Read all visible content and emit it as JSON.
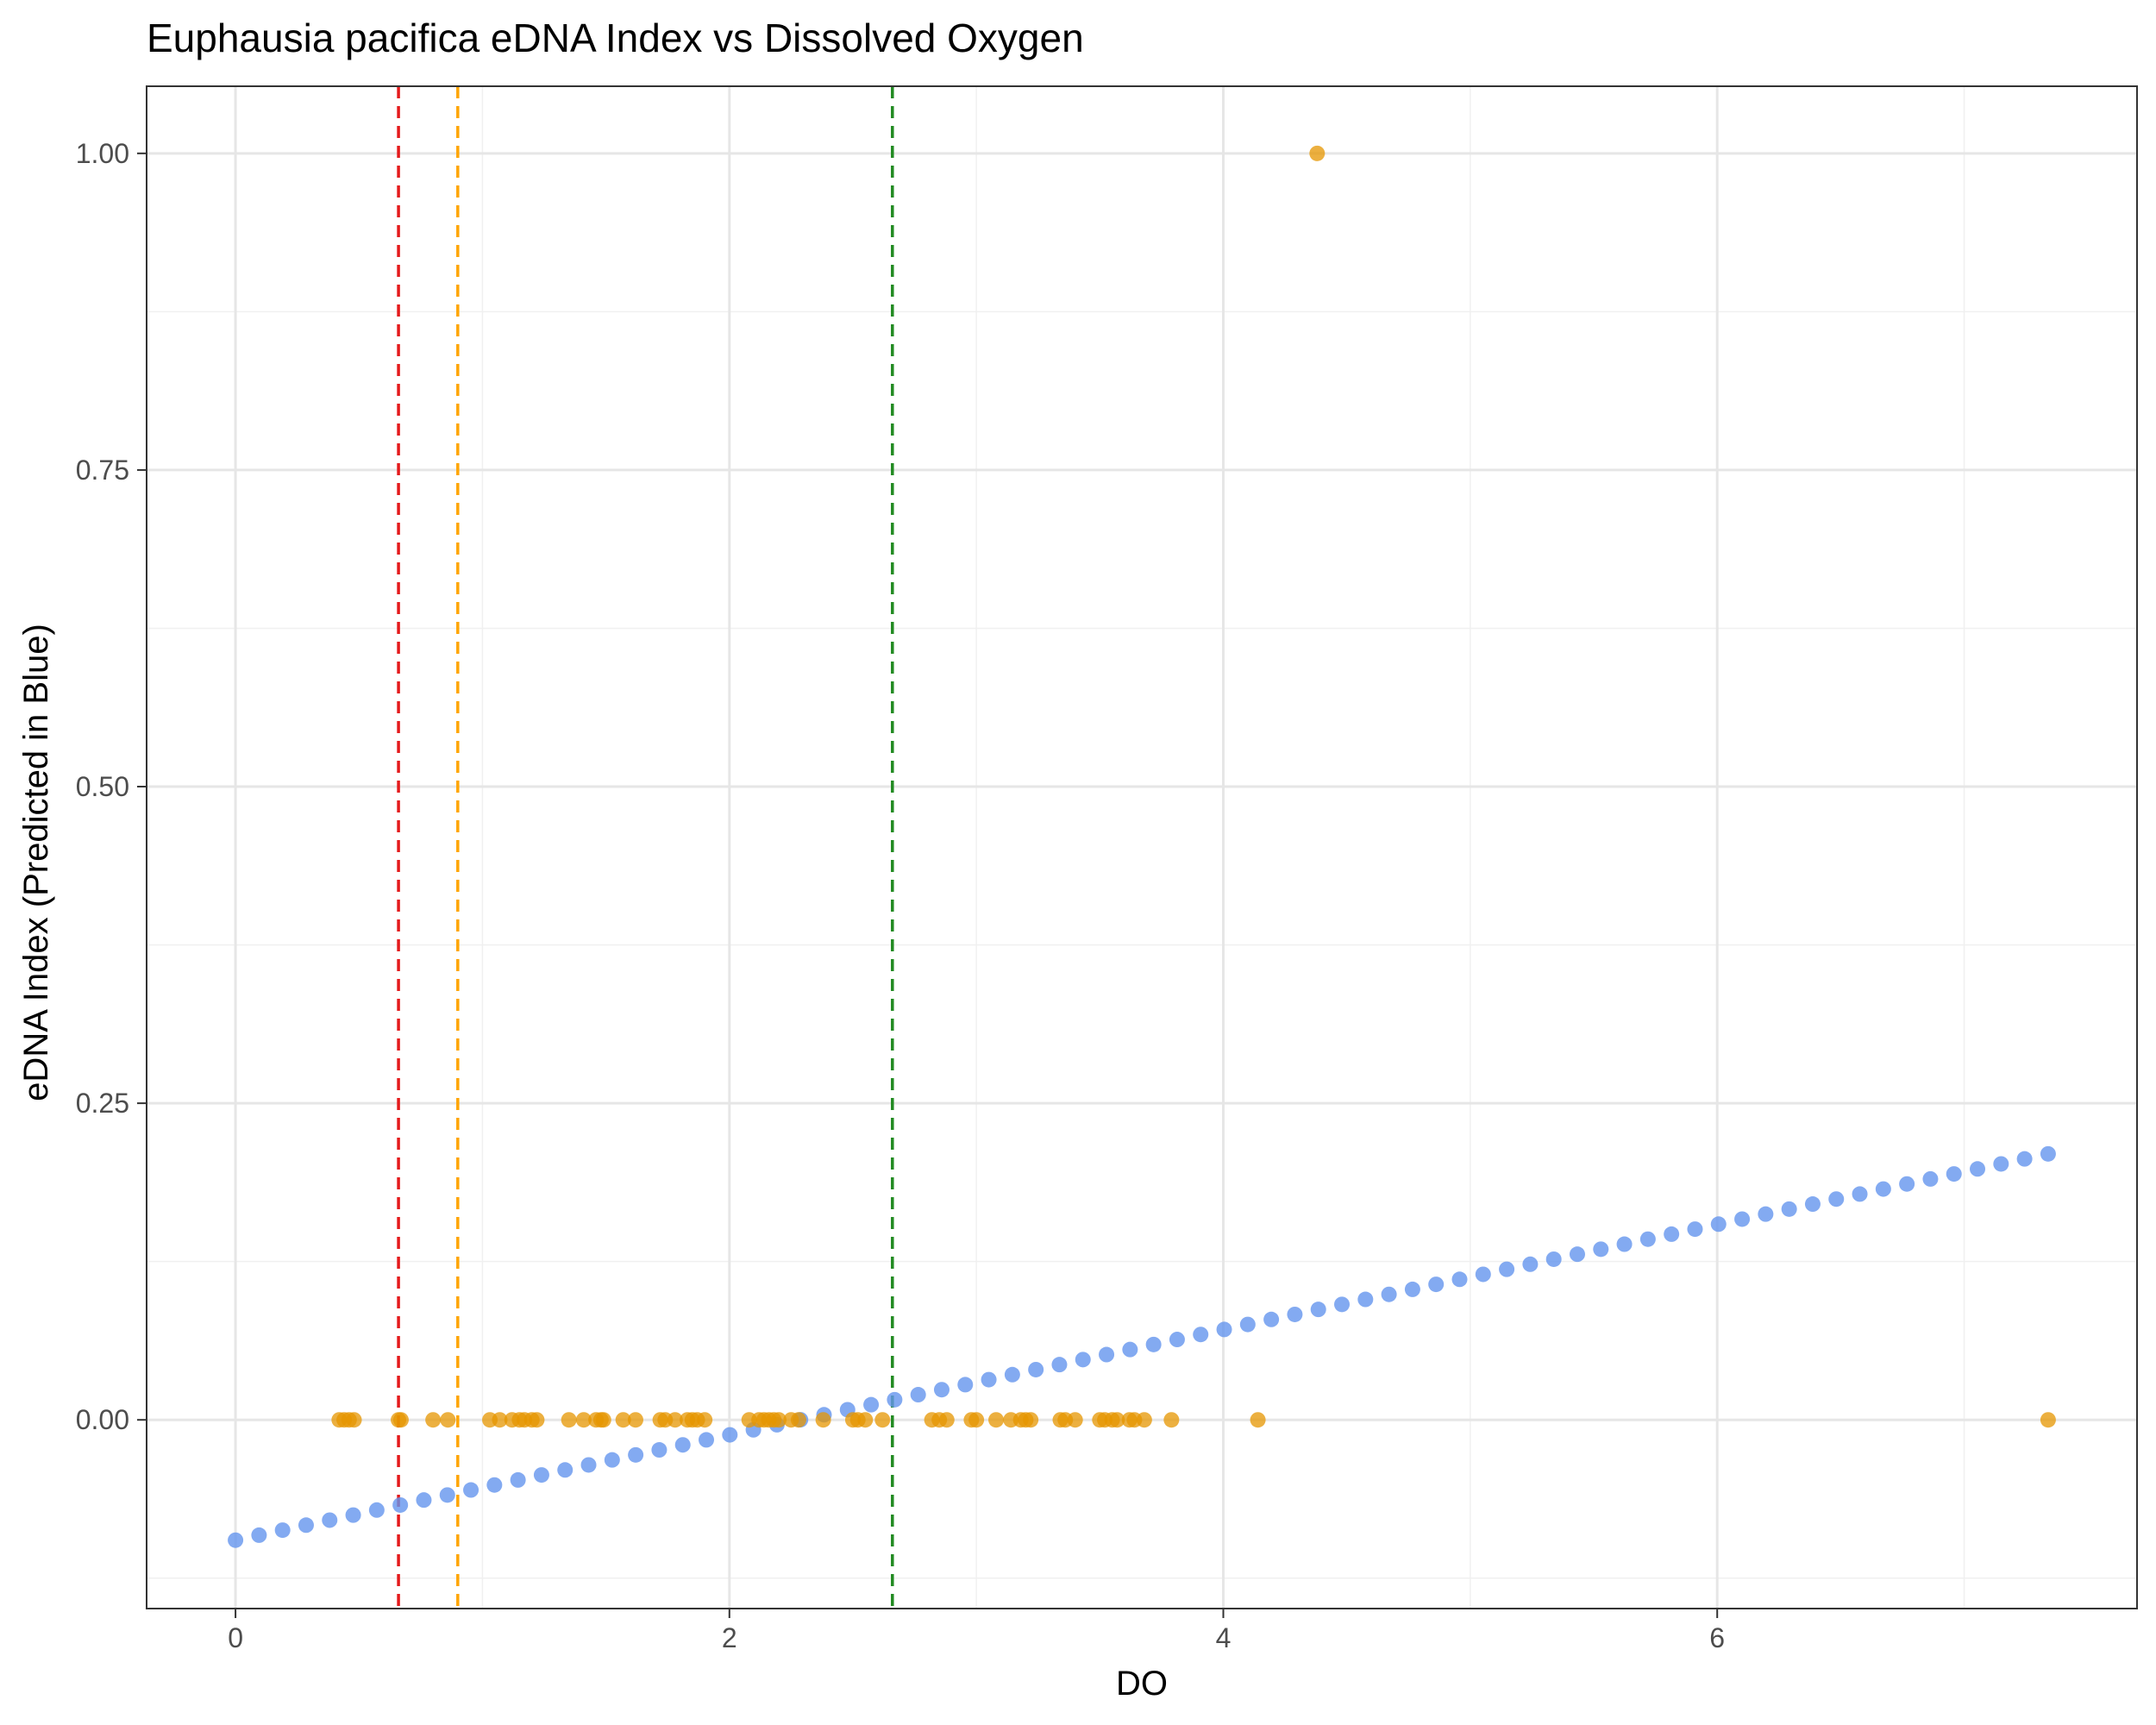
{
  "chart_data": {
    "type": "scatter",
    "title": "Euphausia pacifica eDNA Index vs Dissolved Oxygen",
    "xlabel": "DO",
    "ylabel": "eDNA Index (Predicted in Blue)",
    "xlim": [
      -0.36,
      7.7
    ],
    "ylim": [
      -0.149,
      1.053
    ],
    "x_ticks": [
      0,
      2,
      4,
      6
    ],
    "x_tick_labels": [
      "0",
      "2",
      "4",
      "6"
    ],
    "y_ticks": [
      0,
      0.25,
      0.5,
      0.75,
      1.0
    ],
    "y_tick_labels": [
      "0.00",
      "0.25",
      "0.50",
      "0.75",
      "1.00"
    ],
    "grid": true,
    "reference_lines": [
      {
        "x": 0.66,
        "color": "#e41a1c",
        "style": "dashed"
      },
      {
        "x": 0.9,
        "color": "#ffa500",
        "style": "dashed"
      },
      {
        "x": 2.66,
        "color": "#228b22",
        "style": "dashed"
      }
    ],
    "series": [
      {
        "color": "#6495ed",
        "predicted": {
          "x_start": 0,
          "x_end": 7.34,
          "count": 78,
          "y_start": -0.095,
          "y_end": 0.21
        }
      },
      {
        "color": "#e69500",
        "x": [
          0.42,
          0.44,
          0.46,
          0.48,
          0.66,
          0.67,
          0.8,
          0.86,
          1.03,
          1.07,
          1.12,
          1.15,
          1.17,
          1.2,
          1.22,
          1.35,
          1.41,
          1.46,
          1.48,
          1.49,
          1.57,
          1.62,
          1.72,
          1.74,
          1.78,
          1.83,
          1.85,
          1.87,
          1.9,
          2.08,
          2.12,
          2.14,
          2.16,
          2.18,
          2.2,
          2.25,
          2.28,
          2.38,
          2.5,
          2.52,
          2.55,
          2.62,
          2.82,
          2.85,
          2.88,
          2.98,
          3.0,
          3.08,
          3.14,
          3.18,
          3.2,
          3.22,
          3.34,
          3.36,
          3.4,
          3.5,
          3.52,
          3.55,
          3.57,
          3.62,
          3.64,
          3.68,
          3.79,
          4.14,
          4.38,
          7.34
        ],
        "y": [
          0,
          0,
          0,
          0,
          0,
          0,
          0,
          0,
          0,
          0,
          0,
          0,
          0,
          0,
          0,
          0,
          0,
          0,
          0,
          0,
          0,
          0,
          0,
          0,
          0,
          0,
          0,
          0,
          0,
          0,
          0,
          0,
          0,
          0,
          0,
          0,
          0,
          0,
          0,
          0,
          0,
          0,
          0,
          0,
          0,
          0,
          0,
          0,
          0,
          0,
          0,
          0,
          0,
          0,
          0,
          0,
          0,
          0,
          0,
          0,
          0,
          0,
          0,
          0,
          1.0,
          0
        ]
      }
    ]
  }
}
